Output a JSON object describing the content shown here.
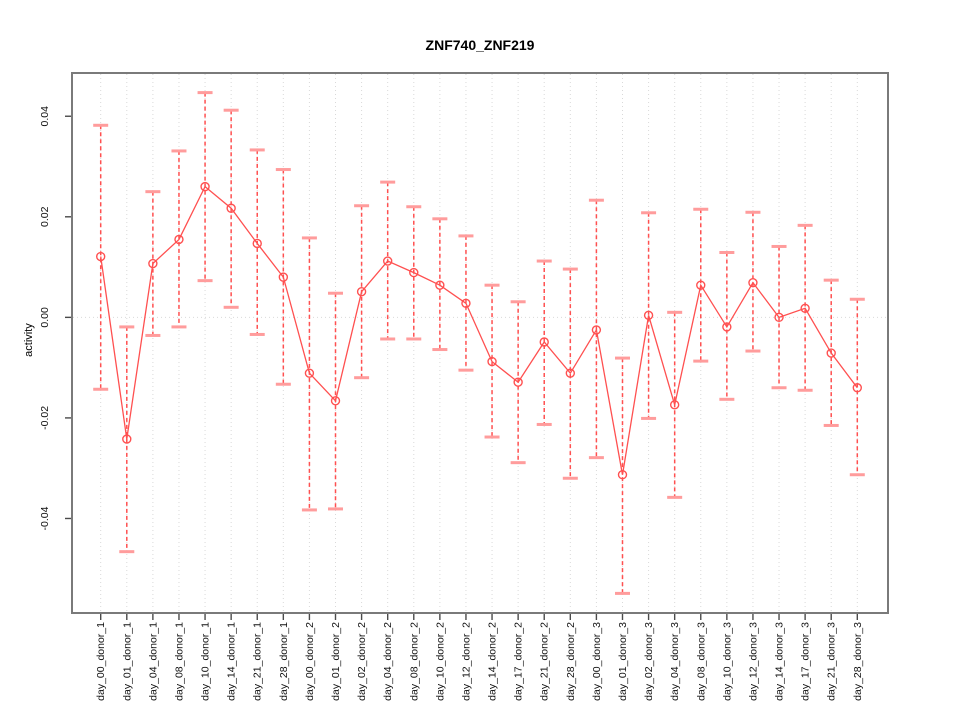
{
  "window": {
    "title": "ZNF740_ZNF219 activity plot"
  },
  "chart_data": {
    "type": "line",
    "title": "ZNF740_ZNF219",
    "xlabel": "",
    "ylabel": "activity",
    "ylim": [
      -0.0588,
      0.0486
    ],
    "yticks": [
      -0.04,
      -0.02,
      0.0,
      0.02,
      0.04
    ],
    "ytick_labels": [
      "-0.04",
      "-0.02",
      "0.00",
      "0.02",
      "0.04"
    ],
    "grid": "vertical dotted gridline at every category; dotted horizontal line at y=0",
    "legend": "none",
    "marker": "open-circle",
    "error_bars": "dashed vertical line with flat caps",
    "categories": [
      "day_00_donor_1",
      "day_01_donor_1",
      "day_04_donor_1",
      "day_08_donor_1",
      "day_10_donor_1",
      "day_14_donor_1",
      "day_21_donor_1",
      "day_28_donor_1",
      "day_00_donor_2",
      "day_01_donor_2",
      "day_02_donor_2",
      "day_04_donor_2",
      "day_08_donor_2",
      "day_10_donor_2",
      "day_12_donor_2",
      "day_14_donor_2",
      "day_17_donor_2",
      "day_21_donor_2",
      "day_28_donor_2",
      "day_00_donor_3",
      "day_01_donor_3",
      "day_02_donor_3",
      "day_04_donor_3",
      "day_08_donor_3",
      "day_10_donor_3",
      "day_12_donor_3",
      "day_14_donor_3",
      "day_17_donor_3",
      "day_21_donor_3",
      "day_28_donor_3"
    ],
    "series": [
      {
        "name": "ZNF740_ZNF219",
        "values": [
          0.0121,
          -0.0242,
          0.0107,
          0.0155,
          0.026,
          0.0217,
          0.0147,
          0.008,
          -0.0111,
          -0.0166,
          0.0051,
          0.0112,
          0.0089,
          0.0064,
          0.0028,
          -0.0088,
          -0.0129,
          -0.0049,
          -0.0111,
          -0.0025,
          -0.0313,
          0.0004,
          -0.0174,
          0.0064,
          -0.0019,
          0.0069,
          0.0,
          0.0018,
          -0.0071,
          -0.014
        ],
        "lower": [
          -0.0143,
          -0.0466,
          -0.0036,
          -0.0019,
          0.0073,
          0.002,
          -0.0034,
          -0.0133,
          -0.0383,
          -0.0381,
          -0.012,
          -0.0043,
          -0.0043,
          -0.0064,
          -0.0105,
          -0.0238,
          -0.0289,
          -0.0213,
          -0.032,
          -0.0279,
          -0.0549,
          -0.0201,
          -0.0358,
          -0.0087,
          -0.0163,
          -0.0067,
          -0.014,
          -0.0145,
          -0.0215,
          -0.0313
        ],
        "upper": [
          0.0382,
          -0.0019,
          0.025,
          0.0331,
          0.0447,
          0.0412,
          0.0333,
          0.0294,
          0.0158,
          0.0048,
          0.0222,
          0.0269,
          0.022,
          0.0196,
          0.0162,
          0.0064,
          0.0031,
          0.0112,
          0.0096,
          0.0233,
          -0.0081,
          0.0208,
          0.001,
          0.0215,
          0.0129,
          0.0209,
          0.0141,
          0.0183,
          0.0074,
          0.0036
        ]
      }
    ],
    "colors": {
      "series": "#ff5050",
      "error_cap": "#ff9c9c",
      "grid": "#d9d9d9",
      "box": "#7a7a7a",
      "tick": "#4a4a4a",
      "text": "#111111"
    }
  }
}
